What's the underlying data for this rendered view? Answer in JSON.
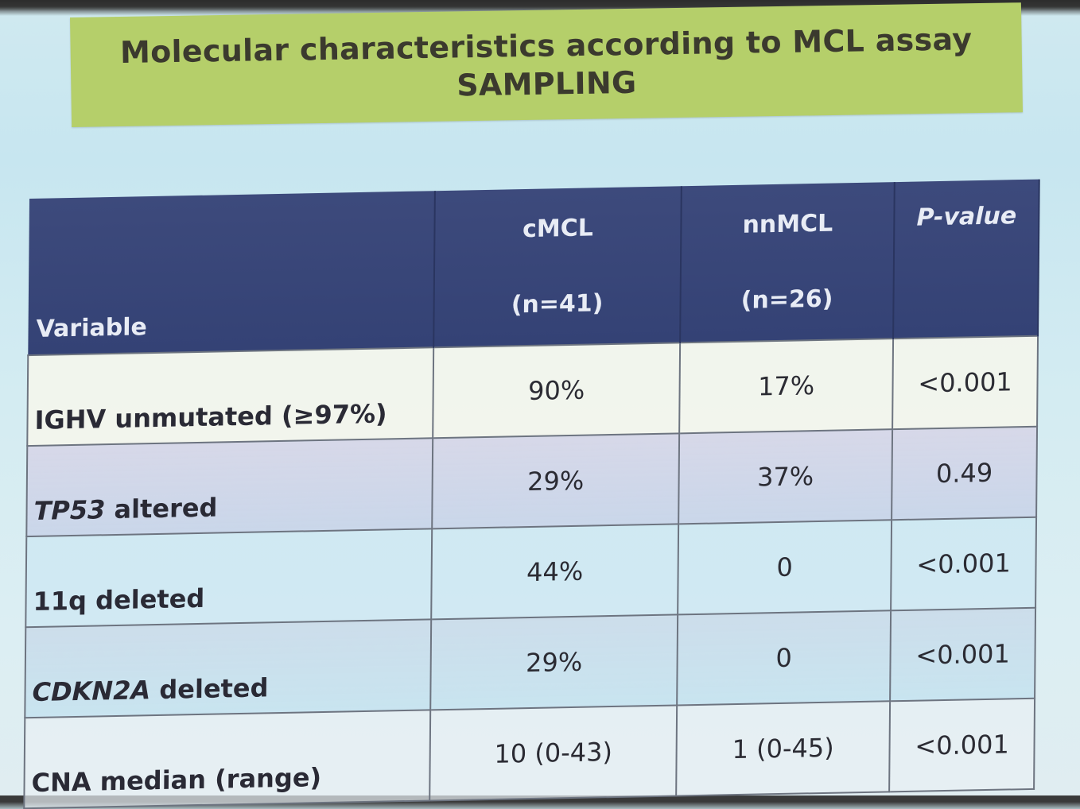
{
  "title": {
    "line1": "Molecular characteristics according to MCL assay",
    "line2": "SAMPLING"
  },
  "colors": {
    "title_bg": "#b5cf6a",
    "header_bg": "#3d4a7c",
    "screen_bg": "#cfe9f0"
  },
  "table": {
    "headers": {
      "variable": "Variable",
      "cmcl_name": "cMCL",
      "cmcl_n": "(n=41)",
      "nnmcl_name": "nnMCL",
      "nnmcl_n": "(n=26)",
      "pvalue": "P-value"
    },
    "rows": [
      {
        "variable_italic": "",
        "variable_rest": "IGHV unmutated (≥97%)",
        "cmcl": "90%",
        "nnmcl": "17%",
        "pvalue": "<0.001"
      },
      {
        "variable_italic": "TP53",
        "variable_rest": " altered",
        "cmcl": "29%",
        "nnmcl": "37%",
        "pvalue": "0.49"
      },
      {
        "variable_italic": "",
        "variable_rest": "11q deleted",
        "cmcl": "44%",
        "nnmcl": "0",
        "pvalue": "<0.001"
      },
      {
        "variable_italic": "CDKN2A",
        "variable_rest": " deleted",
        "cmcl": "29%",
        "nnmcl": "0",
        "pvalue": "<0.001"
      },
      {
        "variable_italic": "",
        "variable_rest": "CNA median (range)",
        "cmcl": "10 (0-43)",
        "nnmcl": "1 (0-45)",
        "pvalue": "<0.001"
      }
    ]
  }
}
